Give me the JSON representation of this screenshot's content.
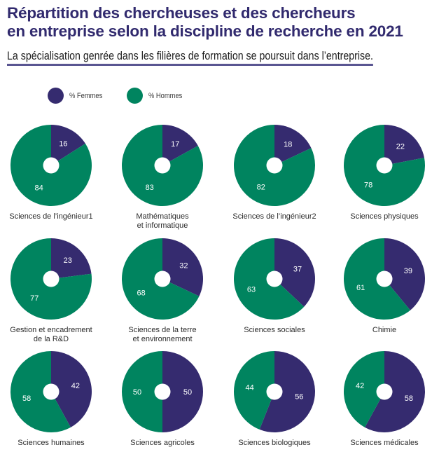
{
  "header": {
    "title_line1": "Répartition des chercheuses et des chercheurs",
    "title_line2": "en entreprise selon la discipline de recherche en 2021",
    "subtitle": "La spécialisation genrée dans les filières de formation se poursuit dans l’entreprise."
  },
  "legend": [
    {
      "label": "% Femmes",
      "color": "#352b6f"
    },
    {
      "label": "% Hommes",
      "color": "#00845f"
    }
  ],
  "chart_data": {
    "type": "pie",
    "title": "Répartition des chercheuses et des chercheurs en entreprise selon la discipline de recherche en 2021",
    "subtitle": "La spécialisation genrée dans les filières de formation se poursuit dans l’entreprise.",
    "series_names": [
      "% Femmes",
      "% Hommes"
    ],
    "colors": {
      "femmes": "#352b6f",
      "hommes": "#00845f"
    },
    "legend_position": "top-left",
    "pies": [
      {
        "label": [
          "Sciences de l’ingénieur1"
        ],
        "femmes": 16,
        "hommes": 84
      },
      {
        "label": [
          "Mathématiques",
          "et informatique"
        ],
        "femmes": 17,
        "hommes": 83
      },
      {
        "label": [
          "Sciences de l’ingénieur2"
        ],
        "femmes": 18,
        "hommes": 82
      },
      {
        "label": [
          "Sciences physiques"
        ],
        "femmes": 22,
        "hommes": 78
      },
      {
        "label": [
          "Gestion et encadrement",
          "de la R&D"
        ],
        "femmes": 23,
        "hommes": 77
      },
      {
        "label": [
          "Sciences de la terre",
          "et environnement"
        ],
        "femmes": 32,
        "hommes": 68
      },
      {
        "label": [
          "Sciences sociales"
        ],
        "femmes": 37,
        "hommes": 63
      },
      {
        "label": [
          "Chimie"
        ],
        "femmes": 39,
        "hommes": 61
      },
      {
        "label": [
          "Sciences humaines"
        ],
        "femmes": 42,
        "hommes": 58
      },
      {
        "label": [
          "Sciences agricoles"
        ],
        "femmes": 50,
        "hommes": 50
      },
      {
        "label": [
          "Sciences biologiques"
        ],
        "femmes": 56,
        "hommes": 44
      },
      {
        "label": [
          "Sciences médicales"
        ],
        "femmes": 58,
        "hommes": 42
      }
    ]
  }
}
